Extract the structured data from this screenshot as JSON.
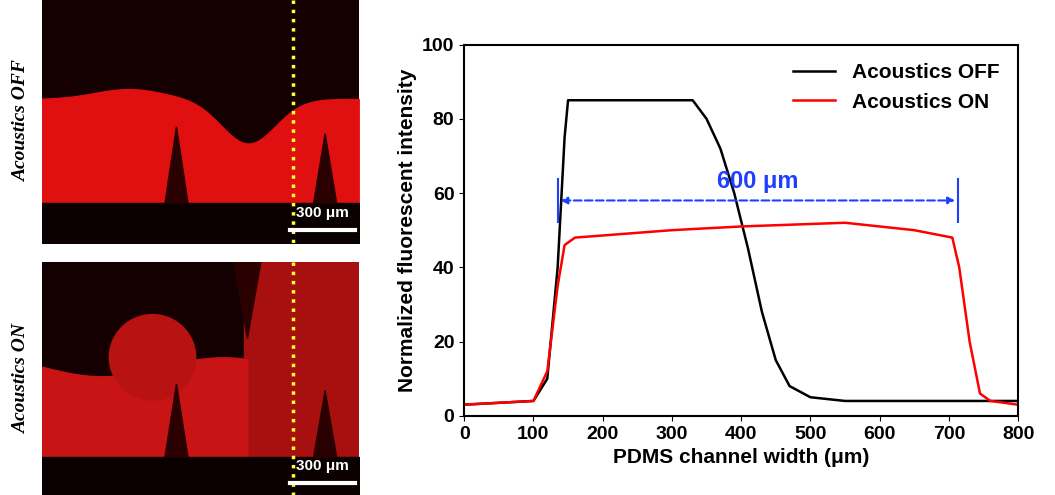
{
  "images": [
    {
      "label": "Acoustics OFF",
      "scale_bar": "300 μm"
    },
    {
      "label": "Acoustics ON",
      "scale_bar": "300 μm"
    }
  ],
  "chart_data": {
    "type": "line",
    "xlabel": "PDMS channel width (μm)",
    "ylabel": "Normalized fluorescent intensity",
    "xlim": [
      0,
      800
    ],
    "xticks": [
      0,
      100,
      200,
      300,
      400,
      500,
      600,
      700,
      800
    ],
    "ylim": [
      0,
      100
    ],
    "yticks": [
      0,
      20,
      40,
      60,
      80,
      100
    ],
    "legend": "upper right",
    "series": [
      {
        "name": "Acoustics OFF",
        "color": "#000000",
        "x": [
          0,
          100,
          120,
          135,
          145,
          150,
          330,
          350,
          370,
          390,
          410,
          430,
          450,
          470,
          500,
          550,
          800
        ],
        "values": [
          3,
          4,
          10,
          40,
          75,
          85,
          85,
          80,
          72,
          60,
          45,
          28,
          15,
          8,
          5,
          4,
          4
        ]
      },
      {
        "name": "Acoustics ON",
        "color": "#ff0000",
        "x": [
          0,
          100,
          120,
          135,
          145,
          160,
          300,
          400,
          550,
          650,
          705,
          715,
          730,
          745,
          760,
          800
        ],
        "values": [
          3,
          4,
          12,
          35,
          46,
          48,
          50,
          51,
          52,
          50,
          48,
          40,
          20,
          6,
          4,
          3
        ]
      }
    ],
    "annotations": [
      {
        "text": "600 μm",
        "x_start": 135,
        "x_end": 713,
        "y": 58,
        "color": "#1f3fff"
      }
    ]
  }
}
